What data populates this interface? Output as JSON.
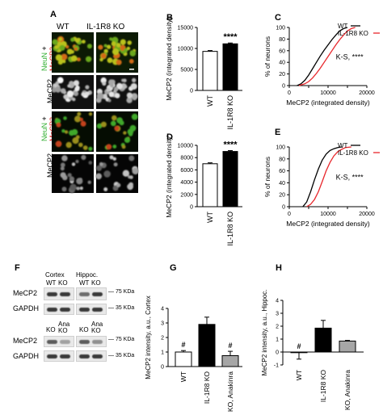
{
  "panels": {
    "A": {
      "letter": "A",
      "col_headers": [
        "WT",
        "IL-1R8 KO"
      ],
      "label_neun": "NeuN",
      "label_plus": " + ",
      "label_mecp2": "MeCP2",
      "row_labels": [
        "NeuN + MeCP2",
        "MeCP2",
        "NeuN + MeCP2",
        "MeCP2"
      ]
    },
    "B": {
      "letter": "B"
    },
    "C": {
      "letter": "C"
    },
    "D": {
      "letter": "D"
    },
    "E": {
      "letter": "E"
    },
    "F": {
      "letter": "F",
      "groups": [
        "Cortex",
        "Hippoc."
      ],
      "lanes_top": [
        "WT",
        "KO",
        "WT",
        "KO"
      ],
      "lanes_bottom": [
        "KO",
        "Ana KO",
        "KO",
        "Ana KO"
      ],
      "lanes_bottom_items": [
        "KO",
        "Ana\nKO",
        "KO",
        "Ana\nKO"
      ],
      "rows": [
        "MeCP2",
        "GAPDH",
        "MeCP2",
        "GAPDH"
      ],
      "kda": [
        "75 KDa",
        "35 KDa",
        "75 KDa",
        "35 KDa"
      ]
    },
    "G": {
      "letter": "G"
    },
    "H": {
      "letter": "H"
    }
  },
  "chart_data": [
    {
      "id": "B",
      "type": "bar",
      "categories": [
        "WT",
        "IL-1R8 KO"
      ],
      "values": [
        9300,
        11100
      ],
      "errors": [
        200,
        200
      ],
      "fills": [
        "#ffffff",
        "#000000"
      ],
      "ylabel": "MeCP2 (integrated density)",
      "ylim": [
        0,
        15000
      ],
      "yticks": [
        0,
        5000,
        10000,
        15000
      ],
      "annotations": [
        {
          "category": "IL-1R8 KO",
          "text": "****"
        }
      ]
    },
    {
      "id": "C",
      "type": "line",
      "xlabel": "MeCP2 (integrated density)",
      "ylabel": "% of neurons",
      "xlim": [
        0,
        20000
      ],
      "ylim": [
        0,
        100
      ],
      "xticks": [
        0,
        5000,
        10000,
        15000,
        20000
      ],
      "yticks": [
        0,
        20,
        40,
        60,
        80,
        100
      ],
      "series": [
        {
          "name": "WT",
          "color": "#000000",
          "x": [
            2000,
            3000,
            4000,
            5000,
            6000,
            7000,
            8000,
            9000,
            10000,
            11000,
            12000,
            13000,
            14000,
            15000
          ],
          "y": [
            0,
            3,
            9,
            18,
            29,
            40,
            51,
            61,
            70,
            79,
            87,
            94,
            98,
            100
          ]
        },
        {
          "name": "IL-1R8 KO",
          "color": "#e8262b",
          "x": [
            2500,
            4000,
            5000,
            6000,
            7000,
            8000,
            9000,
            10000,
            11000,
            12000,
            13000,
            14000,
            15000,
            16000,
            17000
          ],
          "y": [
            0,
            3,
            7,
            13,
            21,
            30,
            40,
            50,
            60,
            70,
            79,
            87,
            94,
            98,
            100
          ]
        }
      ],
      "annotation": "K-S, ****"
    },
    {
      "id": "D",
      "type": "bar",
      "categories": [
        "WT",
        "IL-1R8 KO"
      ],
      "values": [
        7000,
        9000
      ],
      "errors": [
        150,
        150
      ],
      "fills": [
        "#ffffff",
        "#000000"
      ],
      "ylabel": "MeCP2 (integrated density)",
      "ylim": [
        0,
        10000
      ],
      "yticks": [
        0,
        2000,
        4000,
        6000,
        8000,
        10000
      ],
      "annotations": [
        {
          "category": "IL-1R8 KO",
          "text": "****"
        }
      ]
    },
    {
      "id": "E",
      "type": "line",
      "xlabel": "MeCP2 (integrated density)",
      "ylabel": "% of neurons",
      "xlim": [
        0,
        20000
      ],
      "ylim": [
        0,
        100
      ],
      "xticks": [
        0,
        5000,
        10000,
        15000,
        20000
      ],
      "yticks": [
        0,
        20,
        40,
        60,
        80,
        100
      ],
      "series": [
        {
          "name": "WT",
          "color": "#000000",
          "x": [
            3500,
            4500,
            5500,
            6500,
            7500,
            8500,
            9500,
            10500,
            11500,
            12500,
            13500
          ],
          "y": [
            0,
            8,
            25,
            45,
            63,
            78,
            88,
            94,
            97,
            99,
            100
          ]
        },
        {
          "name": "IL-1R8 KO",
          "color": "#e8262b",
          "x": [
            4500,
            5500,
            6500,
            7500,
            8500,
            9500,
            10500,
            11500,
            12500,
            13500,
            14500,
            16000
          ],
          "y": [
            0,
            4,
            12,
            25,
            42,
            60,
            74,
            85,
            92,
            96,
            99,
            100
          ]
        }
      ],
      "annotation": "K-S, ****"
    },
    {
      "id": "G",
      "type": "bar",
      "categories": [
        "WT",
        "IL-1R8 KO",
        "IL-1R8 KO, Anakinra"
      ],
      "values": [
        1.0,
        2.9,
        0.75
      ],
      "errors": [
        0.1,
        0.5,
        0.3
      ],
      "fills": [
        "#ffffff",
        "#000000",
        "#a6a6a6"
      ],
      "ylabel": "MeCP2 intensity, a.u., Cortex",
      "ylim": [
        0,
        4
      ],
      "yticks": [
        0,
        1,
        2,
        3,
        4
      ],
      "annotations": [
        {
          "category": "WT",
          "text": "#"
        },
        {
          "category": "IL-1R8 KO, Anakinra",
          "text": "#"
        }
      ]
    },
    {
      "id": "H",
      "type": "bar",
      "categories": [
        "WT",
        "IL-1R8 KO",
        "IL-1R8 KO, Anakinra"
      ],
      "values": [
        -0.05,
        1.85,
        0.85
      ],
      "errors": [
        0.5,
        0.6,
        0.05
      ],
      "fills": [
        "#ffffff",
        "#000000",
        "#a6a6a6"
      ],
      "ylabel": "MeCP2 intensity, a.u., Hippoc.",
      "ylim": [
        -1,
        4
      ],
      "yticks": [
        -1,
        0,
        1,
        2,
        3,
        4
      ],
      "annotations": [
        {
          "category": "WT",
          "text": "#"
        }
      ]
    }
  ]
}
